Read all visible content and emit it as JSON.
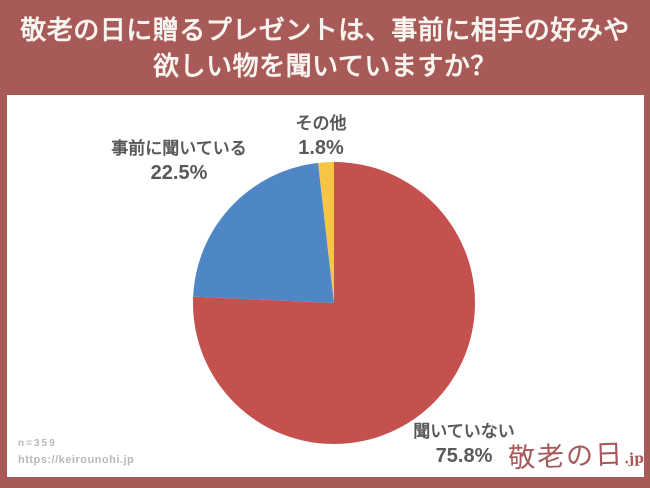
{
  "colors": {
    "frame_background": "#A85A58",
    "panel_background": "#FFFFFF",
    "title_text": "#F8F4EF",
    "label_text": "#595959",
    "footer_text": "#B9B9B9",
    "logo_text": "#A6595A"
  },
  "header": {
    "title_line1": "敬老の日に贈るプレゼントは、事前に相手の好みや",
    "title_line2": "欲しい物を聞いていますか？"
  },
  "chart_data": {
    "type": "pie",
    "title": "敬老の日に贈るプレゼントは、事前に相手の好みや欲しい物を聞いていますか？",
    "start_angle": "top",
    "direction": "clockwise",
    "legend_position": "none",
    "slices": [
      {
        "label": "聞いていない",
        "value": 75.8,
        "display": "75.8%",
        "color": "#C5514F"
      },
      {
        "label": "事前に聞いている",
        "value": 22.5,
        "display": "22.5%",
        "color": "#4F86C6"
      },
      {
        "label": "その他",
        "value": 1.8,
        "display": "1.8%",
        "color": "#F6C545"
      }
    ]
  },
  "footer": {
    "sample_size": "n=359",
    "url": "https://keirounohi.jp"
  },
  "logo": {
    "text": "敬老の日",
    "suffix": ".jp"
  }
}
